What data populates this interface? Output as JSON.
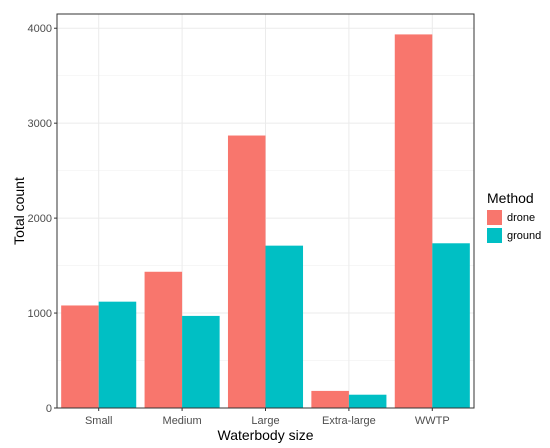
{
  "chart_data": {
    "type": "bar",
    "xlabel": "Waterbody size",
    "ylabel": "Total count",
    "categories": [
      "Small",
      "Medium",
      "Large",
      "Extra-large",
      "WWTP"
    ],
    "series": [
      {
        "name": "drone",
        "color": "#F8766D",
        "values": [
          1080,
          1435,
          2870,
          180,
          3935
        ]
      },
      {
        "name": "ground",
        "color": "#00BFC4",
        "values": [
          1120,
          970,
          1710,
          140,
          1735
        ]
      }
    ],
    "ylim": [
      0,
      4150
    ],
    "yticks": [
      0,
      1000,
      2000,
      3000,
      4000
    ],
    "grid": true,
    "legend": {
      "title": "Method",
      "placement": "right"
    }
  }
}
